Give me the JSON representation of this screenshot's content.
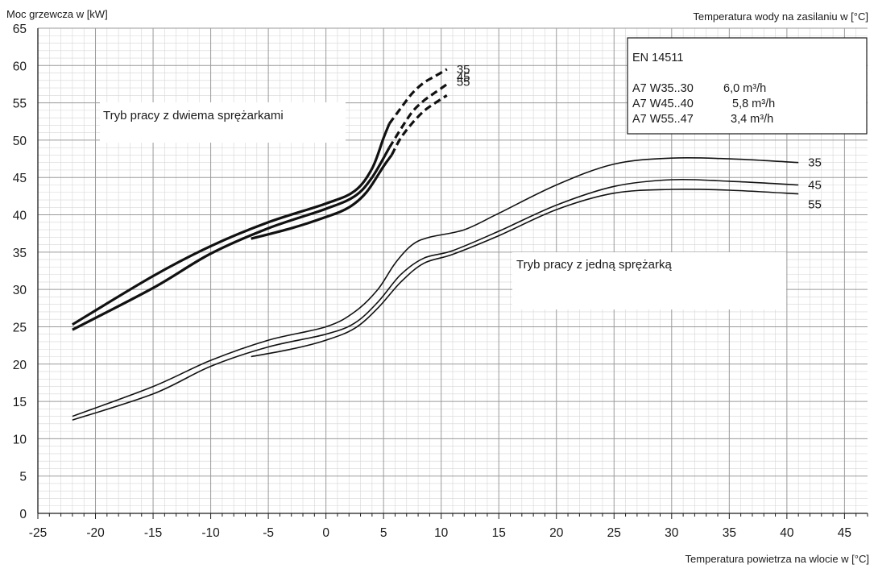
{
  "chart_data": {
    "type": "line",
    "ylabel": "Moc grzewcza w [kW]",
    "xlabel": "Temperatura powietrza na wlocie w [°C]",
    "legend_title": "Temperatura wody na zasilaniu w [°C]",
    "xlim": [
      -25,
      47
    ],
    "ylim": [
      0,
      65
    ],
    "x_ticks": [
      -25,
      -20,
      -15,
      -10,
      -5,
      0,
      5,
      10,
      15,
      20,
      25,
      30,
      35,
      40,
      45
    ],
    "y_ticks": [
      0,
      5,
      10,
      15,
      20,
      25,
      30,
      35,
      40,
      45,
      50,
      55,
      60,
      65
    ],
    "grid": true,
    "info_box": {
      "title": "EN 14511",
      "rows": [
        {
          "condition": "A7 W35..30",
          "flow": "6,0 m³/h"
        },
        {
          "condition": "A7 W45..40",
          "flow": "5,8 m³/h"
        },
        {
          "condition": "A7 W55..47",
          "flow": "3,4 m³/h"
        }
      ]
    },
    "annotations": {
      "two_compressors": "Tryb pracy z dwiema sprężarkami",
      "one_compressor": "Tryb pracy z jedną sprężarką"
    },
    "series": [
      {
        "name": "35",
        "group": "two",
        "line": "solid",
        "points": [
          [
            -22,
            25.3
          ],
          [
            -15,
            31.8
          ],
          [
            -10,
            35.8
          ],
          [
            -5,
            39
          ],
          [
            0,
            41.5
          ],
          [
            2.5,
            43.2
          ],
          [
            4,
            46.2
          ],
          [
            5,
            50.3
          ],
          [
            5.5,
            52.2
          ]
        ]
      },
      {
        "name": "35",
        "group": "two",
        "line": "dashed",
        "points": [
          [
            5.5,
            52.2
          ],
          [
            6.5,
            54.3
          ],
          [
            7.5,
            56.3
          ],
          [
            8.5,
            57.7
          ],
          [
            9.5,
            58.6
          ],
          [
            10.5,
            59.5
          ]
        ]
      },
      {
        "name": "45",
        "group": "two",
        "line": "solid",
        "points": [
          [
            -22,
            24.6
          ],
          [
            -15,
            30.2
          ],
          [
            -10,
            34.8
          ],
          [
            -5,
            38.2
          ],
          [
            0,
            40.8
          ],
          [
            2.5,
            42.5
          ],
          [
            4,
            45
          ],
          [
            5.5,
            49
          ]
        ]
      },
      {
        "name": "45",
        "group": "two",
        "line": "dashed",
        "points": [
          [
            5.5,
            49
          ],
          [
            6.5,
            51.5
          ],
          [
            7.5,
            53.8
          ],
          [
            8.5,
            55.3
          ],
          [
            9.5,
            56.4
          ],
          [
            10.5,
            57.5
          ]
        ]
      },
      {
        "name": "55",
        "group": "two",
        "line": "solid",
        "points": [
          [
            -6.5,
            36.8
          ],
          [
            -3,
            38.2
          ],
          [
            0,
            39.7
          ],
          [
            2,
            41
          ],
          [
            3.5,
            43
          ],
          [
            5,
            46.5
          ],
          [
            5.7,
            48
          ]
        ]
      },
      {
        "name": "55",
        "group": "two",
        "line": "dashed",
        "points": [
          [
            5.7,
            48
          ],
          [
            6.5,
            50.3
          ],
          [
            7.5,
            52.3
          ],
          [
            8.5,
            53.9
          ],
          [
            9.5,
            55
          ],
          [
            10.5,
            56
          ]
        ]
      },
      {
        "name": "35",
        "group": "one",
        "line": "solid",
        "points": [
          [
            -22,
            13
          ],
          [
            -15,
            17
          ],
          [
            -10,
            20.5
          ],
          [
            -5,
            23.2
          ],
          [
            0,
            25
          ],
          [
            2.5,
            27
          ],
          [
            4.5,
            30
          ],
          [
            6,
            33.5
          ],
          [
            7.5,
            36
          ],
          [
            9,
            37
          ],
          [
            12,
            38
          ],
          [
            15,
            40.2
          ],
          [
            20,
            44
          ],
          [
            25,
            46.8
          ],
          [
            30,
            47.6
          ],
          [
            35,
            47.5
          ],
          [
            41,
            47
          ]
        ]
      },
      {
        "name": "45",
        "group": "one",
        "line": "solid",
        "points": [
          [
            -22,
            12.5
          ],
          [
            -15,
            16
          ],
          [
            -10,
            19.7
          ],
          [
            -5,
            22.3
          ],
          [
            0,
            24
          ],
          [
            2.5,
            25.5
          ],
          [
            4.5,
            28.3
          ],
          [
            6.5,
            32
          ],
          [
            8.5,
            34.2
          ],
          [
            11,
            35.2
          ],
          [
            15,
            37.8
          ],
          [
            20,
            41.3
          ],
          [
            25,
            43.8
          ],
          [
            30,
            44.7
          ],
          [
            35,
            44.5
          ],
          [
            41,
            44
          ]
        ]
      },
      {
        "name": "55",
        "group": "one",
        "line": "solid",
        "points": [
          [
            -6.5,
            21
          ],
          [
            -3,
            22
          ],
          [
            0,
            23.2
          ],
          [
            2.5,
            24.8
          ],
          [
            4.5,
            27.5
          ],
          [
            6.5,
            31
          ],
          [
            8.5,
            33.5
          ],
          [
            11,
            34.7
          ],
          [
            15,
            37.2
          ],
          [
            20,
            40.7
          ],
          [
            25,
            42.9
          ],
          [
            30,
            43.4
          ],
          [
            35,
            43.3
          ],
          [
            41,
            42.8
          ]
        ]
      }
    ]
  }
}
